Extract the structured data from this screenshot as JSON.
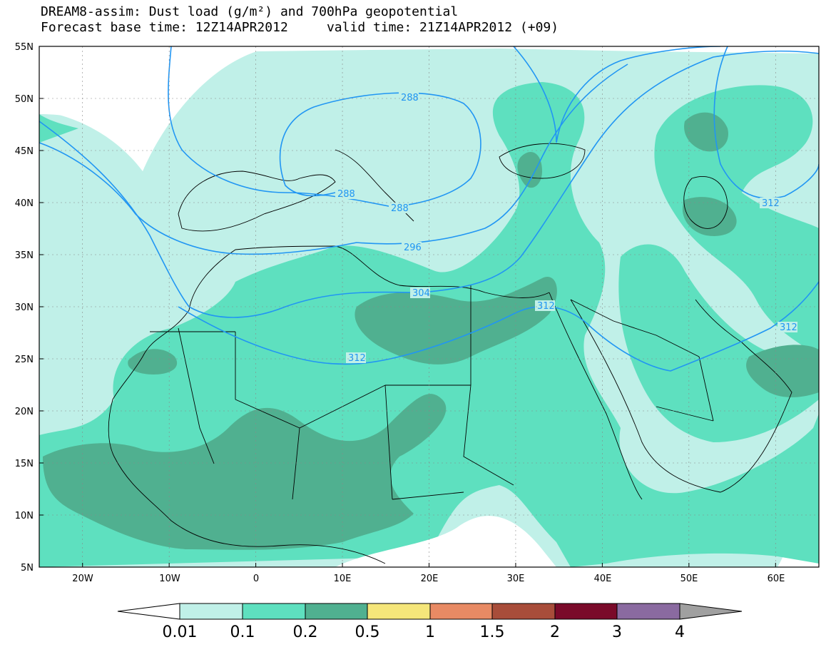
{
  "title": {
    "line1": "DREAM8-assim: Dust load (g/m²) and 700hPa geopotential",
    "line2": "Forecast base time: 12Z14APR2012     valid time: 21Z14APR2012 (+09)"
  },
  "map": {
    "lon_range": [
      -25,
      65
    ],
    "lat_range": [
      5,
      55
    ],
    "lat_ticks": [
      "55N",
      "50N",
      "45N",
      "40N",
      "35N",
      "30N",
      "25N",
      "20N",
      "15N",
      "10N",
      "5N"
    ],
    "lon_ticks": [
      "20W",
      "10W",
      "0",
      "10E",
      "20E",
      "30E",
      "40E",
      "50E",
      "60E"
    ],
    "contour_labels": [
      "288",
      "288",
      "288",
      "296",
      "304",
      "312",
      "312",
      "312",
      "312"
    ],
    "colors": {
      "bin1": "#c0f0e8",
      "bin2": "#5ee0bf",
      "bin3": "#50b090",
      "contour": "#2196f3",
      "border": "#000000"
    }
  },
  "colorbar": {
    "labels": [
      "0.01",
      "0.1",
      "0.2",
      "0.5",
      "1",
      "1.5",
      "2",
      "3",
      "4"
    ],
    "colors": [
      "#ffffff",
      "#c0f0e8",
      "#5ee0bf",
      "#50b090",
      "#f5e67a",
      "#e88a64",
      "#a84d3a",
      "#7a0a2a",
      "#8a6aa0",
      "#a0a0a0"
    ]
  }
}
